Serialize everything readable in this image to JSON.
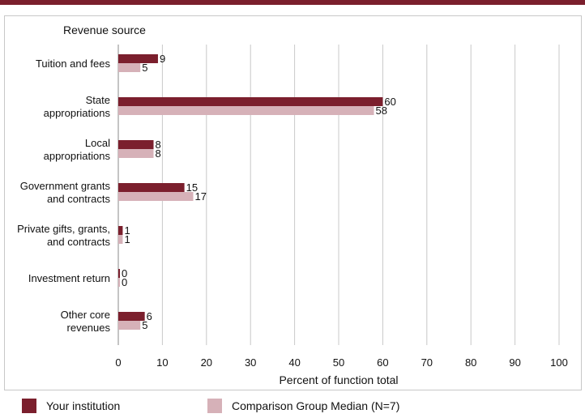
{
  "colors": {
    "institution": "#7b1f2d",
    "comparison": "#d6b1b8",
    "grid": "#c8c8c8",
    "top_bar": "#7b1f2d"
  },
  "chart_data": {
    "type": "bar",
    "orientation": "horizontal",
    "title": "Revenue source",
    "xlabel": "Percent of function total",
    "ylabel": "",
    "xlim": [
      0,
      100
    ],
    "xticks": [
      0,
      10,
      20,
      30,
      40,
      50,
      60,
      70,
      80,
      90,
      100
    ],
    "grid": true,
    "legend_position": "bottom",
    "categories": [
      [
        "Tuition and fees"
      ],
      [
        "State",
        "appropriations"
      ],
      [
        "Local",
        "appropriations"
      ],
      [
        "Government grants",
        "and contracts"
      ],
      [
        "Private gifts, grants,",
        "and contracts"
      ],
      [
        "Investment return"
      ],
      [
        "Other core",
        "revenues"
      ]
    ],
    "series": [
      {
        "name": "Your institution",
        "color": "#7b1f2d",
        "values": [
          9,
          60,
          8,
          15,
          1,
          0,
          6
        ]
      },
      {
        "name": "Comparison Group Median (N=7)",
        "color": "#d6b1b8",
        "values": [
          5,
          58,
          8,
          17,
          1,
          0,
          5
        ]
      }
    ]
  },
  "legend": {
    "institution": "Your institution",
    "comparison": "Comparison Group Median (N=7)"
  }
}
